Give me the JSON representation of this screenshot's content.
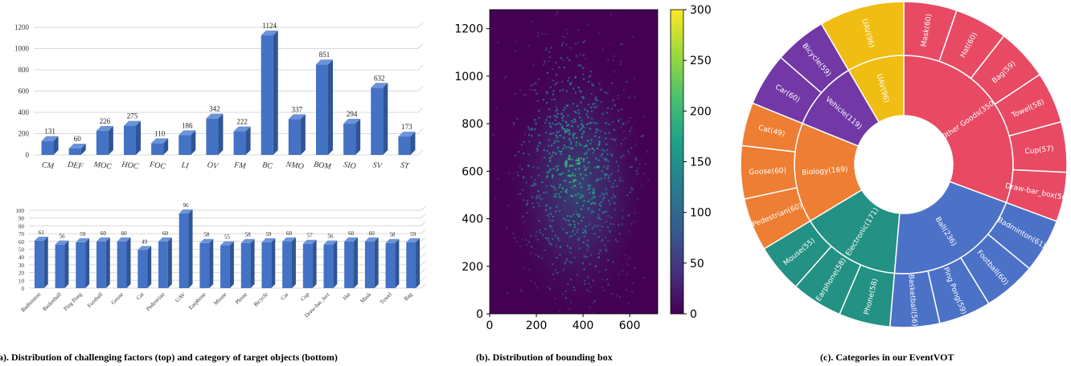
{
  "colors": {
    "bar": "#4472C4",
    "bar_top": "#6b93d8",
    "bar_side": "#2f5597",
    "grid": "#d9d9d9",
    "sunburst": {
      "Other Goods(350)": "#e84a64",
      "Ball(236)": "#4c72c7",
      "Electronic(171)": "#239183",
      "Biology(169)": "#ee7e33",
      "Vehicle(119)": "#7138a6",
      "UAV(96)": "#f0bd12"
    }
  },
  "captions": {
    "a": "(a). Distribution of challenging factors (top) and category of target objects (bottom)",
    "b": "(b). Distribution of bounding box",
    "c": "(c). Categories in our EventVOT"
  },
  "chart_data": [
    {
      "type": "bar",
      "categories": [
        "CM",
        "DEF",
        "MOC",
        "HOC",
        "FOC",
        "LI",
        "OV",
        "FM",
        "BC",
        "NMO",
        "BOM",
        "SIO",
        "SV",
        "ST"
      ],
      "values": [
        131,
        60,
        226,
        275,
        110,
        186,
        342,
        222,
        1124,
        337,
        851,
        294,
        632,
        173
      ],
      "yticks": [
        0,
        200,
        400,
        600,
        800,
        1000,
        1200
      ],
      "ylim": [
        0,
        1200
      ],
      "grid": true
    },
    {
      "type": "bar",
      "categories": [
        "Badminton",
        "Basketball",
        "Ping Pong",
        "Football",
        "Goose",
        "Cat",
        "Pedestrian",
        "UAV",
        "Earphone",
        "Mouse",
        "Phone",
        "Bicycle",
        "Car",
        "Cup",
        "Draw-bar_box",
        "Hat",
        "Mask",
        "Towel",
        "Bag"
      ],
      "values": [
        61,
        56,
        59,
        60,
        60,
        49,
        60,
        96,
        58,
        55,
        58,
        59,
        60,
        57,
        56,
        60,
        60,
        58,
        59
      ],
      "yticks": [
        0,
        10,
        20,
        30,
        40,
        50,
        60,
        70,
        80,
        90,
        100
      ],
      "ylim": [
        0,
        100
      ],
      "grid": true
    },
    {
      "type": "heatmap",
      "xticks": [
        "0",
        "200",
        "400",
        "600"
      ],
      "yticks": [
        "0",
        "200",
        "400",
        "600",
        "800",
        "1000",
        "1200"
      ],
      "colorbar_ticks": [
        "0",
        "50",
        "100",
        "150",
        "200",
        "250",
        "300"
      ],
      "colorbar_range": [
        0,
        300
      ],
      "xlim": [
        0,
        720
      ],
      "ylim": [
        0,
        1280
      ]
    },
    {
      "type": "pie",
      "inner": [
        {
          "label": "Other Goods(350)",
          "value": 350
        },
        {
          "label": "Ball(236)",
          "value": 236
        },
        {
          "label": "Electronic(171)",
          "value": 171
        },
        {
          "label": "Biology(169)",
          "value": 169
        },
        {
          "label": "Vehicle(119)",
          "value": 119
        },
        {
          "label": "UAV(96)",
          "value": 96
        }
      ],
      "outer": [
        {
          "label": "Mask(60)",
          "value": 60,
          "parent": "Other Goods(350)"
        },
        {
          "label": "Hat(60)",
          "value": 60,
          "parent": "Other Goods(350)"
        },
        {
          "label": "Bag(59)",
          "value": 59,
          "parent": "Other Goods(350)"
        },
        {
          "label": "Towel(58)",
          "value": 58,
          "parent": "Other Goods(350)"
        },
        {
          "label": "Cup(57)",
          "value": 57,
          "parent": "Other Goods(350)"
        },
        {
          "label": "Draw-bar_box(56)",
          "value": 56,
          "parent": "Other Goods(350)"
        },
        {
          "label": "Badminton(61)",
          "value": 61,
          "parent": "Ball(236)"
        },
        {
          "label": "Football(60)",
          "value": 60,
          "parent": "Ball(236)"
        },
        {
          "label": "Ping Pong(59)",
          "value": 59,
          "parent": "Ball(236)"
        },
        {
          "label": "Basketball(56)",
          "value": 56,
          "parent": "Ball(236)"
        },
        {
          "label": "Phone(58)",
          "value": 58,
          "parent": "Electronic(171)"
        },
        {
          "label": "Earphone(58)",
          "value": 58,
          "parent": "Electronic(171)"
        },
        {
          "label": "Mouse(55)",
          "value": 55,
          "parent": "Electronic(171)"
        },
        {
          "label": "Pedestrian(60)",
          "value": 60,
          "parent": "Biology(169)"
        },
        {
          "label": "Goose(60)",
          "value": 60,
          "parent": "Biology(169)"
        },
        {
          "label": "Cat(49)",
          "value": 49,
          "parent": "Biology(169)"
        },
        {
          "label": "Car(60)",
          "value": 60,
          "parent": "Vehicle(119)"
        },
        {
          "label": "Bicycle(59)",
          "value": 59,
          "parent": "Vehicle(119)"
        },
        {
          "label": "UAV(96)",
          "value": 96,
          "parent": "UAV(96)"
        }
      ]
    }
  ]
}
